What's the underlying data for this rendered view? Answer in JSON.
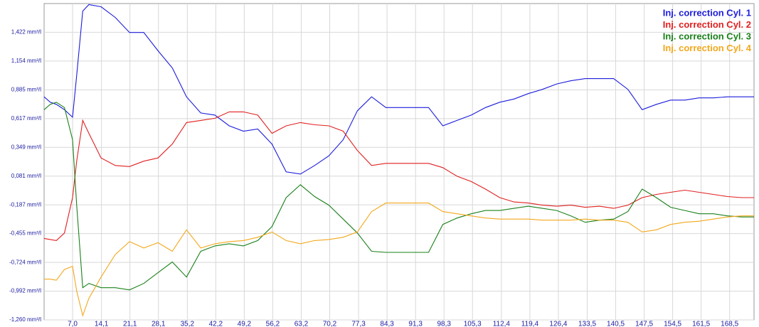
{
  "chart_data": {
    "type": "line",
    "x": [
      0,
      1.5,
      3,
      5,
      7,
      8,
      9.5,
      11,
      14,
      17.5,
      21,
      24.5,
      28,
      31.5,
      35,
      38.5,
      42,
      45.5,
      49,
      52.5,
      56,
      59.5,
      63,
      66.5,
      70,
      73.5,
      77,
      80.5,
      84,
      87.5,
      91,
      94.5,
      98,
      101.5,
      105,
      108.5,
      112,
      115.5,
      119,
      122.5,
      126,
      129.5,
      133,
      136.5,
      140,
      143.5,
      147,
      150.5,
      154,
      157.5,
      161,
      164.5,
      168,
      171.5,
      174.5
    ],
    "series": [
      {
        "name": "Inj. correction Cyl. 1",
        "color": "#1c1cdc",
        "values": [
          0.82,
          0.77,
          0.75,
          0.7,
          0.63,
          1.02,
          1.62,
          1.68,
          1.66,
          1.56,
          1.42,
          1.42,
          1.25,
          1.09,
          0.82,
          0.67,
          0.65,
          0.55,
          0.5,
          0.52,
          0.38,
          0.12,
          0.1,
          0.18,
          0.27,
          0.42,
          0.69,
          0.82,
          0.72,
          0.72,
          0.72,
          0.72,
          0.55,
          0.6,
          0.65,
          0.72,
          0.77,
          0.8,
          0.85,
          0.89,
          0.94,
          0.97,
          0.99,
          0.99,
          0.99,
          0.89,
          0.7,
          0.75,
          0.79,
          0.79,
          0.81,
          0.81,
          0.82,
          0.82,
          0.82
        ]
      },
      {
        "name": "Inj. correction Cyl. 2",
        "color": "#e02020",
        "values": [
          -0.5,
          -0.51,
          -0.52,
          -0.45,
          -0.12,
          0.22,
          0.6,
          0.48,
          0.25,
          0.18,
          0.17,
          0.22,
          0.25,
          0.38,
          0.58,
          0.6,
          0.62,
          0.68,
          0.68,
          0.65,
          0.48,
          0.55,
          0.58,
          0.56,
          0.55,
          0.5,
          0.32,
          0.18,
          0.2,
          0.2,
          0.2,
          0.2,
          0.16,
          0.08,
          0.03,
          -0.04,
          -0.12,
          -0.16,
          -0.17,
          -0.19,
          -0.2,
          -0.19,
          -0.21,
          -0.2,
          -0.22,
          -0.19,
          -0.12,
          -0.09,
          -0.07,
          -0.05,
          -0.07,
          -0.09,
          -0.11,
          -0.12,
          -0.12
        ]
      },
      {
        "name": "Inj. correction Cyl. 3",
        "color": "#1a801a",
        "values": [
          0.7,
          0.75,
          0.77,
          0.72,
          0.42,
          -0.19,
          -0.96,
          -0.92,
          -0.96,
          -0.96,
          -0.98,
          -0.92,
          -0.82,
          -0.72,
          -0.86,
          -0.62,
          -0.57,
          -0.55,
          -0.57,
          -0.52,
          -0.39,
          -0.12,
          0.0,
          -0.11,
          -0.19,
          -0.32,
          -0.45,
          -0.62,
          -0.63,
          -0.63,
          -0.63,
          -0.63,
          -0.37,
          -0.31,
          -0.27,
          -0.24,
          -0.24,
          -0.22,
          -0.2,
          -0.22,
          -0.24,
          -0.29,
          -0.35,
          -0.33,
          -0.32,
          -0.25,
          -0.04,
          -0.12,
          -0.21,
          -0.24,
          -0.27,
          -0.27,
          -0.29,
          -0.3,
          -0.3
        ]
      },
      {
        "name": "Inj. correction Cyl. 4",
        "color": "#f2a81c",
        "values": [
          -0.88,
          -0.88,
          -0.89,
          -0.79,
          -0.76,
          -0.99,
          -1.22,
          -1.06,
          -0.86,
          -0.65,
          -0.53,
          -0.59,
          -0.54,
          -0.62,
          -0.42,
          -0.59,
          -0.55,
          -0.53,
          -0.52,
          -0.49,
          -0.44,
          -0.52,
          -0.55,
          -0.52,
          -0.51,
          -0.49,
          -0.44,
          -0.25,
          -0.17,
          -0.17,
          -0.17,
          -0.17,
          -0.25,
          -0.27,
          -0.29,
          -0.31,
          -0.32,
          -0.32,
          -0.32,
          -0.33,
          -0.33,
          -0.33,
          -0.32,
          -0.33,
          -0.33,
          -0.35,
          -0.44,
          -0.42,
          -0.37,
          -0.35,
          -0.34,
          -0.32,
          -0.3,
          -0.29,
          -0.29
        ]
      }
    ],
    "xlim": [
      0,
      174.5
    ],
    "ylim": [
      -1.26,
      1.69
    ],
    "xticks": [
      {
        "value": 7.0,
        "label": "7,0"
      },
      {
        "value": 14.1,
        "label": "14,1"
      },
      {
        "value": 21.1,
        "label": "21,1"
      },
      {
        "value": 28.1,
        "label": "28,1"
      },
      {
        "value": 35.2,
        "label": "35,2"
      },
      {
        "value": 42.2,
        "label": "42,2"
      },
      {
        "value": 49.2,
        "label": "49,2"
      },
      {
        "value": 56.2,
        "label": "56,2"
      },
      {
        "value": 63.2,
        "label": "63,2"
      },
      {
        "value": 70.2,
        "label": "70,2"
      },
      {
        "value": 77.3,
        "label": "77,3"
      },
      {
        "value": 84.3,
        "label": "84,3"
      },
      {
        "value": 91.3,
        "label": "91,3"
      },
      {
        "value": 98.3,
        "label": "98,3"
      },
      {
        "value": 105.3,
        "label": "105,3"
      },
      {
        "value": 112.4,
        "label": "112,4"
      },
      {
        "value": 119.4,
        "label": "119,4"
      },
      {
        "value": 126.4,
        "label": "126,4"
      },
      {
        "value": 133.5,
        "label": "133,5"
      },
      {
        "value": 140.5,
        "label": "140,5"
      },
      {
        "value": 147.5,
        "label": "147,5"
      },
      {
        "value": 154.5,
        "label": "154,5"
      },
      {
        "value": 161.5,
        "label": "161,5"
      },
      {
        "value": 168.5,
        "label": "168,5"
      }
    ],
    "yticks": [
      {
        "value": -1.26,
        "label": "-1,260 mm³/l"
      },
      {
        "value": -0.992,
        "label": "-0,992 mm³/l"
      },
      {
        "value": -0.724,
        "label": "-0,724 mm³/l"
      },
      {
        "value": -0.455,
        "label": "-0,455 mm³/l"
      },
      {
        "value": -0.187,
        "label": "-0,187 mm³/l"
      },
      {
        "value": 0.081,
        "label": "0,081 mm³/l"
      },
      {
        "value": 0.349,
        "label": "0,349 mm³/l"
      },
      {
        "value": 0.617,
        "label": "0,617 mm³/l"
      },
      {
        "value": 0.885,
        "label": "0,885 mm³/l"
      },
      {
        "value": 1.154,
        "label": "1,154 mm³/l"
      },
      {
        "value": 1.422,
        "label": "1,422 mm³/l"
      }
    ],
    "grid": true,
    "legend": "top-right"
  }
}
